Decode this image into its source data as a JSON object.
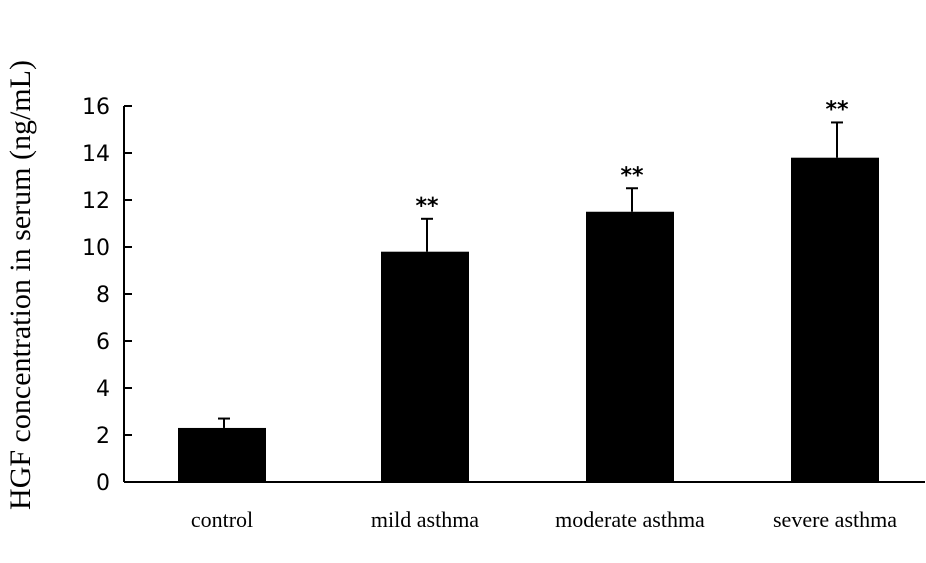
{
  "chart_data": {
    "type": "bar",
    "title": "",
    "xlabel": "",
    "ylabel": "HGF concentration in serum (ng/mL)",
    "ylim": [
      0,
      16
    ],
    "yticks": [
      0,
      2,
      4,
      6,
      8,
      10,
      12,
      14,
      16
    ],
    "grid": false,
    "categories": [
      "control",
      "mild asthma",
      "moderate asthma",
      "severe asthma"
    ],
    "values": [
      2.3,
      9.8,
      11.5,
      13.8
    ],
    "error_upper": [
      0.4,
      1.4,
      1.0,
      1.5
    ],
    "annotations": [
      "",
      "**",
      "**",
      "**"
    ],
    "bar_color": "#000000"
  }
}
